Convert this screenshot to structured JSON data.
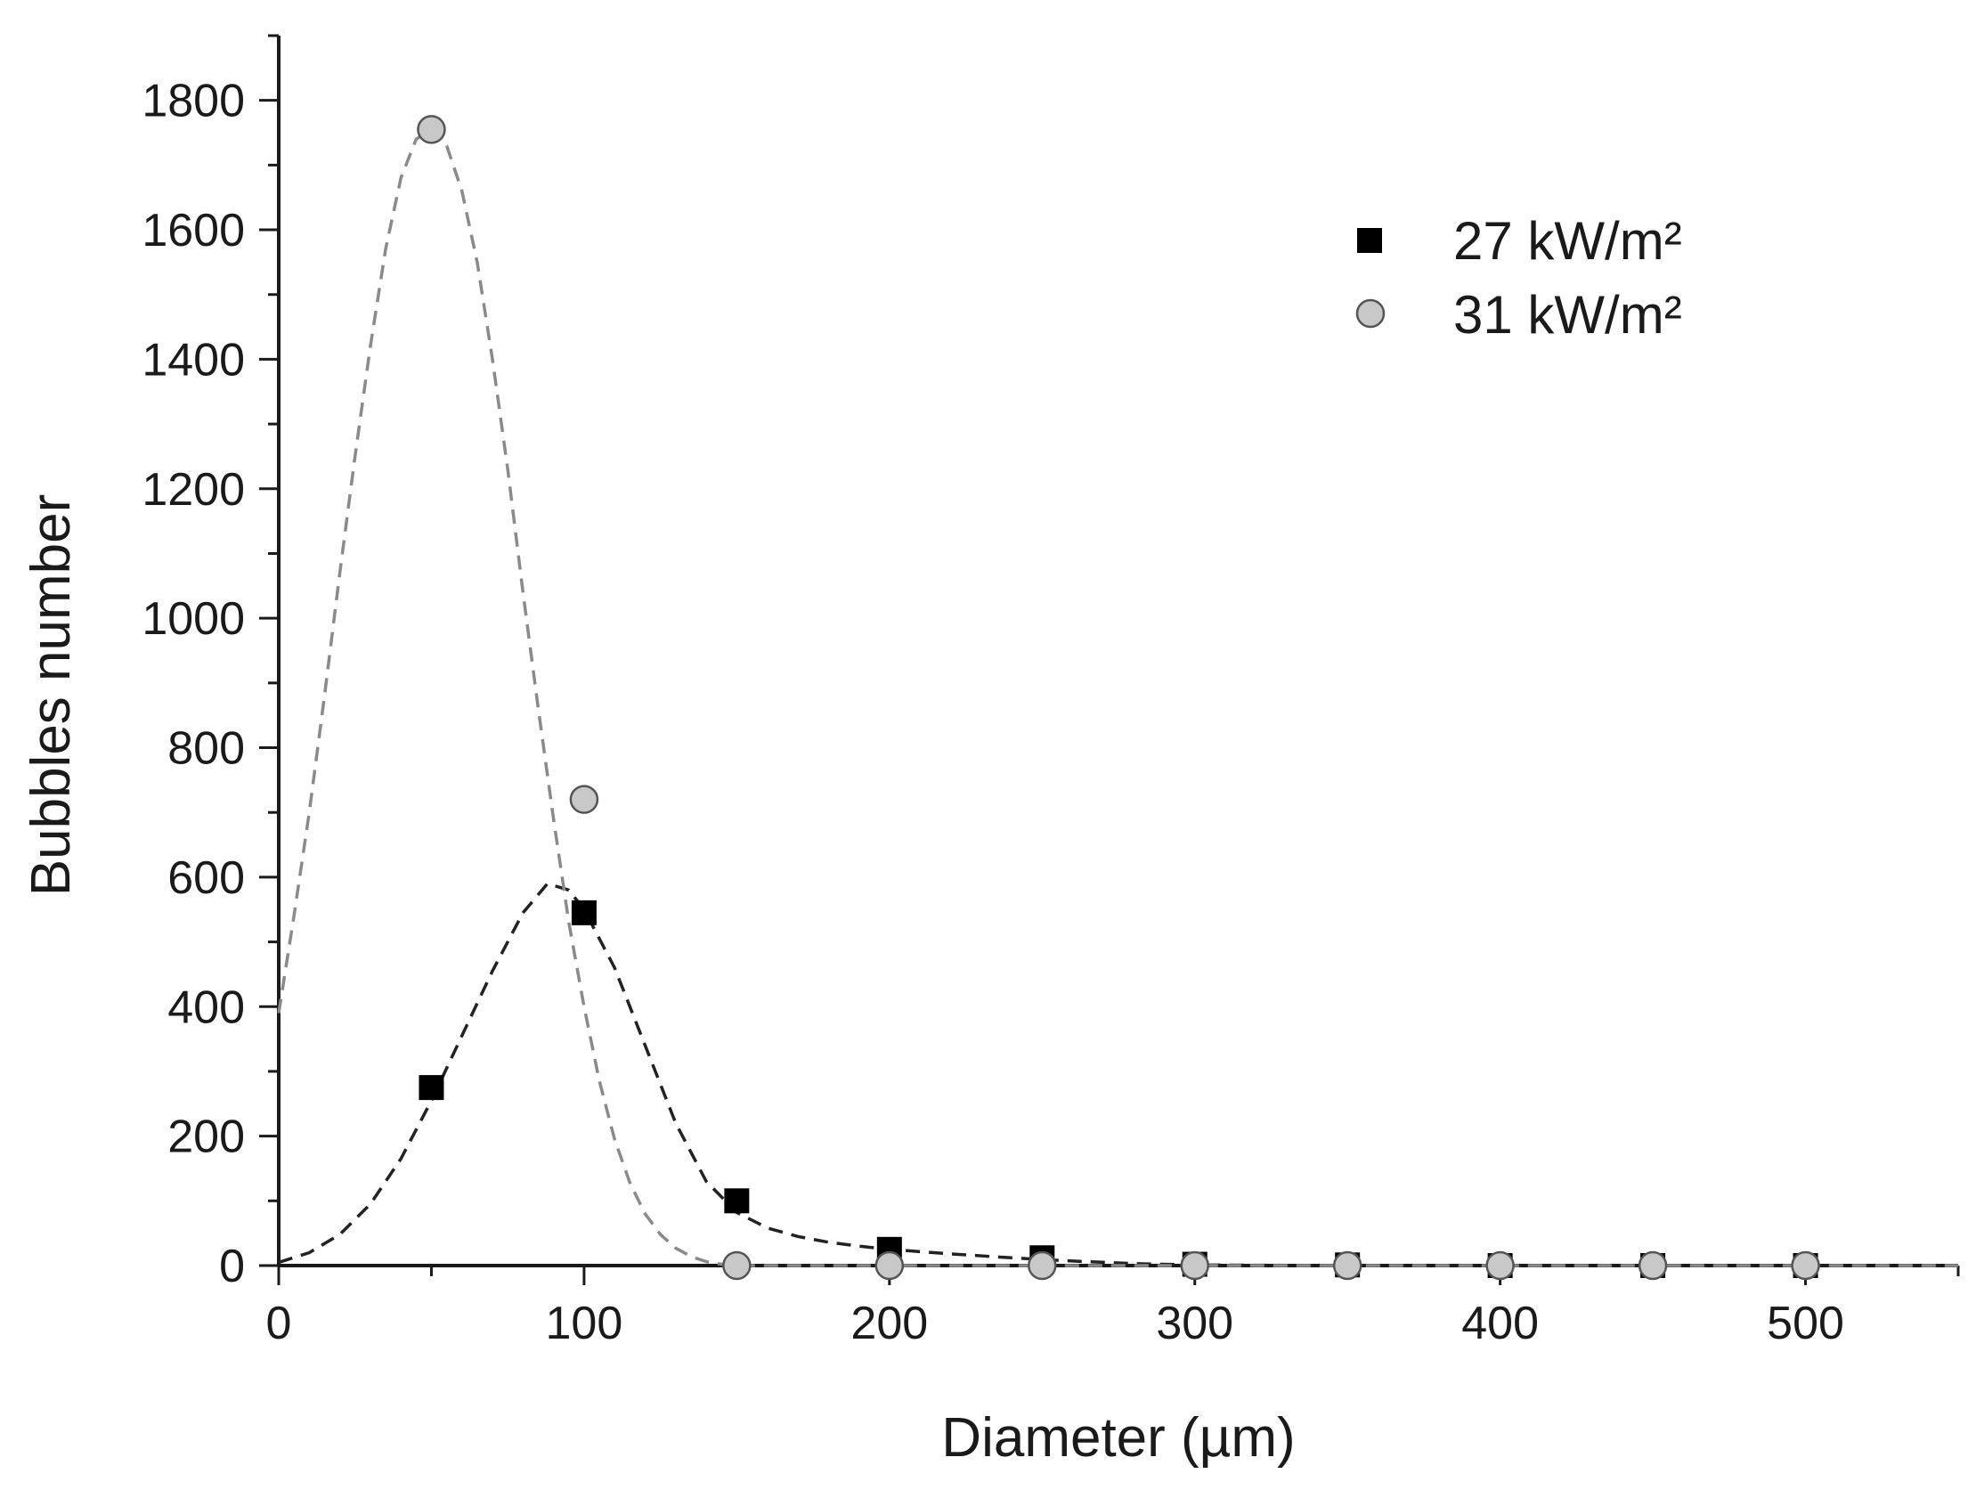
{
  "chart_data": {
    "type": "scatter",
    "title": "",
    "xlabel": "Diameter (µm)",
    "ylabel": "Bubbles number",
    "xlim": [
      0,
      550
    ],
    "ylim": [
      0,
      1900
    ],
    "x_ticks": [
      0,
      100,
      200,
      300,
      400,
      500
    ],
    "x_tick_labels": [
      "0",
      "100",
      "200",
      "300",
      "400",
      "500"
    ],
    "x_minor_step": 50,
    "y_ticks": [
      0,
      200,
      400,
      600,
      800,
      1000,
      1200,
      1400,
      1600,
      1800
    ],
    "y_tick_labels": [
      "0",
      "200",
      "400",
      "600",
      "800",
      "1000",
      "1200",
      "1400",
      "1600",
      "1800"
    ],
    "y_minor_step": 100,
    "grid": false,
    "legend_position": "top-right",
    "series": [
      {
        "name": "27 kW/m²",
        "marker": "square",
        "color": "#000000",
        "points": [
          [
            50,
            275
          ],
          [
            100,
            545
          ],
          [
            150,
            100
          ],
          [
            200,
            25
          ],
          [
            250,
            12
          ],
          [
            300,
            2
          ],
          [
            350,
            1
          ],
          [
            400,
            0
          ],
          [
            450,
            0
          ],
          [
            500,
            0
          ]
        ],
        "fit": {
          "style": "dashed",
          "color": "#222222",
          "points": [
            [
              0,
              5
            ],
            [
              10,
              20
            ],
            [
              20,
              48
            ],
            [
              30,
              95
            ],
            [
              40,
              165
            ],
            [
              50,
              255
            ],
            [
              60,
              355
            ],
            [
              70,
              455
            ],
            [
              80,
              545
            ],
            [
              88,
              590
            ],
            [
              95,
              580
            ],
            [
              100,
              550
            ],
            [
              110,
              460
            ],
            [
              120,
              340
            ],
            [
              130,
              220
            ],
            [
              140,
              130
            ],
            [
              150,
              82
            ],
            [
              160,
              58
            ],
            [
              170,
              45
            ],
            [
              180,
              36
            ],
            [
              190,
              30
            ],
            [
              200,
              25
            ],
            [
              220,
              18
            ],
            [
              240,
              12
            ],
            [
              260,
              7
            ],
            [
              280,
              3
            ],
            [
              300,
              1
            ],
            [
              350,
              0
            ],
            [
              400,
              0
            ],
            [
              450,
              0
            ],
            [
              500,
              0
            ],
            [
              550,
              0
            ]
          ]
        }
      },
      {
        "name": "31 kW/m²",
        "marker": "circle",
        "color": "#c8c8c8",
        "points": [
          [
            50,
            1755
          ],
          [
            100,
            720
          ],
          [
            150,
            0
          ],
          [
            200,
            0
          ],
          [
            250,
            0
          ],
          [
            300,
            0
          ],
          [
            350,
            0
          ],
          [
            400,
            0
          ],
          [
            450,
            0
          ],
          [
            500,
            0
          ]
        ],
        "fit": {
          "style": "dashed",
          "color": "#8a8a8a",
          "points": [
            [
              0,
              390
            ],
            [
              5,
              540
            ],
            [
              10,
              700
            ],
            [
              15,
              880
            ],
            [
              20,
              1070
            ],
            [
              25,
              1250
            ],
            [
              30,
              1420
            ],
            [
              35,
              1570
            ],
            [
              40,
              1680
            ],
            [
              45,
              1740
            ],
            [
              50,
              1755
            ],
            [
              55,
              1730
            ],
            [
              60,
              1660
            ],
            [
              65,
              1550
            ],
            [
              70,
              1400
            ],
            [
              75,
              1230
            ],
            [
              80,
              1040
            ],
            [
              85,
              860
            ],
            [
              90,
              690
            ],
            [
              95,
              530
            ],
            [
              100,
              400
            ],
            [
              105,
              285
            ],
            [
              110,
              195
            ],
            [
              115,
              128
            ],
            [
              120,
              80
            ],
            [
              125,
              48
            ],
            [
              130,
              27
            ],
            [
              135,
              14
            ],
            [
              140,
              6
            ],
            [
              145,
              2
            ],
            [
              150,
              0
            ],
            [
              200,
              0
            ],
            [
              300,
              0
            ],
            [
              400,
              0
            ],
            [
              500,
              0
            ],
            [
              550,
              0
            ]
          ]
        }
      }
    ]
  }
}
